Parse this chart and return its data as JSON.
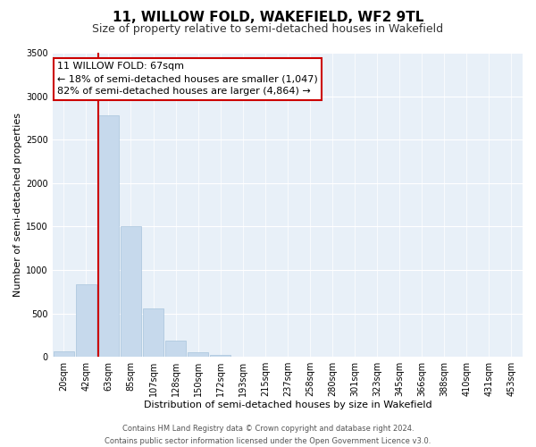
{
  "title_line1": "11, WILLOW FOLD, WAKEFIELD, WF2 9TL",
  "title_line2": "Size of property relative to semi-detached houses in Wakefield",
  "xlabel": "Distribution of semi-detached houses by size in Wakefield",
  "ylabel": "Number of semi-detached properties",
  "footer_line1": "Contains HM Land Registry data © Crown copyright and database right 2024.",
  "footer_line2": "Contains public sector information licensed under the Open Government Licence v3.0.",
  "annotation_line1": "11 WILLOW FOLD: 67sqm",
  "annotation_line2": "← 18% of semi-detached houses are smaller (1,047)",
  "annotation_line3": "82% of semi-detached houses are larger (4,864) →",
  "bar_labels": [
    "20sqm",
    "42sqm",
    "63sqm",
    "85sqm",
    "107sqm",
    "128sqm",
    "150sqm",
    "172sqm",
    "193sqm",
    "215sqm",
    "237sqm",
    "258sqm",
    "280sqm",
    "301sqm",
    "323sqm",
    "345sqm",
    "366sqm",
    "388sqm",
    "410sqm",
    "431sqm",
    "453sqm"
  ],
  "bar_values": [
    60,
    830,
    2780,
    1500,
    555,
    185,
    55,
    20,
    5,
    0,
    0,
    0,
    0,
    0,
    0,
    0,
    0,
    0,
    0,
    0,
    0
  ],
  "bar_color": "#c6d9ec",
  "bar_edge_color": "#a8c4dc",
  "property_line_color": "#cc0000",
  "ylim": [
    0,
    3500
  ],
  "yticks": [
    0,
    500,
    1000,
    1500,
    2000,
    2500,
    3000,
    3500
  ],
  "bg_color": "#ffffff",
  "plot_bg_color": "#e8f0f8",
  "grid_color": "#ffffff",
  "annotation_box_facecolor": "#ffffff",
  "annotation_box_edgecolor": "#cc0000",
  "title_fontsize": 11,
  "subtitle_fontsize": 9,
  "label_fontsize": 8,
  "tick_fontsize": 7,
  "footer_fontsize": 6,
  "annotation_fontsize": 8
}
